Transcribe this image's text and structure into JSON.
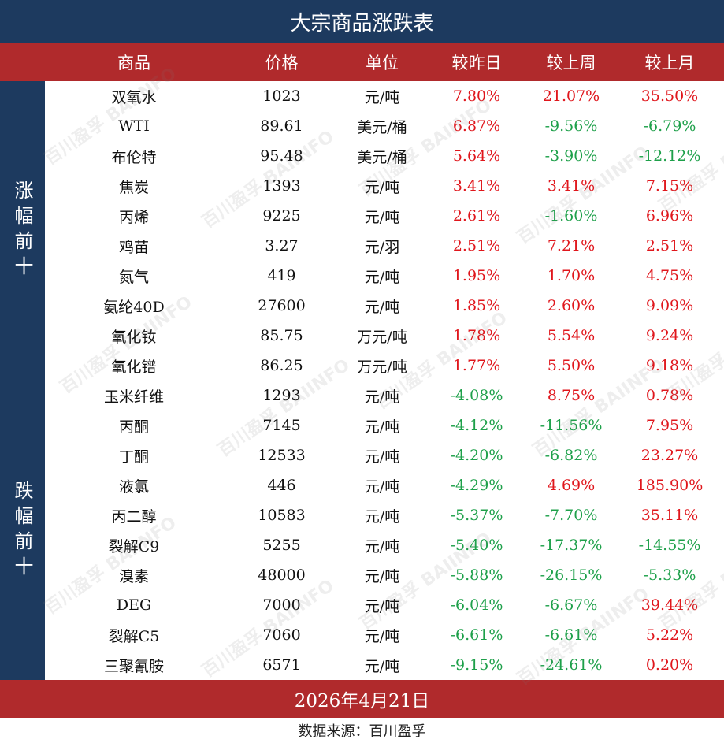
{
  "title": "大宗商品涨跌表",
  "headers": [
    "商品",
    "价格",
    "单位",
    "较昨日",
    "较上周",
    "较上月"
  ],
  "groups": {
    "up": "涨幅前十",
    "down": "跌幅前十"
  },
  "rows": [
    {
      "name": "双氧水",
      "price": "1023",
      "unit": "元/吨",
      "d": "7.80%",
      "w": "21.07%",
      "m": "35.50%"
    },
    {
      "name": "WTI",
      "price": "89.61",
      "unit": "美元/桶",
      "d": "6.87%",
      "w": "-9.56%",
      "m": "-6.79%"
    },
    {
      "name": "布伦特",
      "price": "95.48",
      "unit": "美元/桶",
      "d": "5.64%",
      "w": "-3.90%",
      "m": "-12.12%"
    },
    {
      "name": "焦炭",
      "price": "1393",
      "unit": "元/吨",
      "d": "3.41%",
      "w": "3.41%",
      "m": "7.15%"
    },
    {
      "name": "丙烯",
      "price": "9225",
      "unit": "元/吨",
      "d": "2.61%",
      "w": "-1.60%",
      "m": "6.96%"
    },
    {
      "name": "鸡苗",
      "price": "3.27",
      "unit": "元/羽",
      "d": "2.51%",
      "w": "7.21%",
      "m": "2.51%"
    },
    {
      "name": "氮气",
      "price": "419",
      "unit": "元/吨",
      "d": "1.95%",
      "w": "1.70%",
      "m": "4.75%"
    },
    {
      "name": "氨纶40D",
      "price": "27600",
      "unit": "元/吨",
      "d": "1.85%",
      "w": "2.60%",
      "m": "9.09%"
    },
    {
      "name": "氧化钕",
      "price": "85.75",
      "unit": "万元/吨",
      "d": "1.78%",
      "w": "5.54%",
      "m": "9.24%"
    },
    {
      "name": "氧化镨",
      "price": "86.25",
      "unit": "万元/吨",
      "d": "1.77%",
      "w": "5.50%",
      "m": "9.18%"
    },
    {
      "name": "玉米纤维",
      "price": "1293",
      "unit": "元/吨",
      "d": "-4.08%",
      "w": "8.75%",
      "m": "0.78%"
    },
    {
      "name": "丙酮",
      "price": "7145",
      "unit": "元/吨",
      "d": "-4.12%",
      "w": "-11.56%",
      "m": "7.95%"
    },
    {
      "name": "丁酮",
      "price": "12533",
      "unit": "元/吨",
      "d": "-4.20%",
      "w": "-6.82%",
      "m": "23.27%"
    },
    {
      "name": "液氯",
      "price": "446",
      "unit": "元/吨",
      "d": "-4.29%",
      "w": "4.69%",
      "m": "185.90%"
    },
    {
      "name": "丙二醇",
      "price": "10583",
      "unit": "元/吨",
      "d": "-5.37%",
      "w": "-7.70%",
      "m": "35.11%"
    },
    {
      "name": "裂解C9",
      "price": "5255",
      "unit": "元/吨",
      "d": "-5.40%",
      "w": "-17.37%",
      "m": "-14.55%"
    },
    {
      "name": "溴素",
      "price": "48000",
      "unit": "元/吨",
      "d": "-5.88%",
      "w": "-26.15%",
      "m": "-5.33%"
    },
    {
      "name": "DEG",
      "price": "7000",
      "unit": "元/吨",
      "d": "-6.04%",
      "w": "-6.67%",
      "m": "39.44%"
    },
    {
      "name": "裂解C5",
      "price": "7060",
      "unit": "元/吨",
      "d": "-6.61%",
      "w": "-6.61%",
      "m": "5.22%"
    },
    {
      "name": "三聚氰胺",
      "price": "6571",
      "unit": "元/吨",
      "d": "-9.15%",
      "w": "-24.61%",
      "m": "0.20%"
    }
  ],
  "date": "2026年4月21日",
  "source": "数据来源：百川盈孚",
  "watermark": {
    "cn": "百川盈孚",
    "en": "BAIINFO"
  },
  "colors": {
    "navy": "#1d3a5f",
    "red_bar": "#b02a2c",
    "positive": "#e0161c",
    "negative": "#1ea04a"
  }
}
